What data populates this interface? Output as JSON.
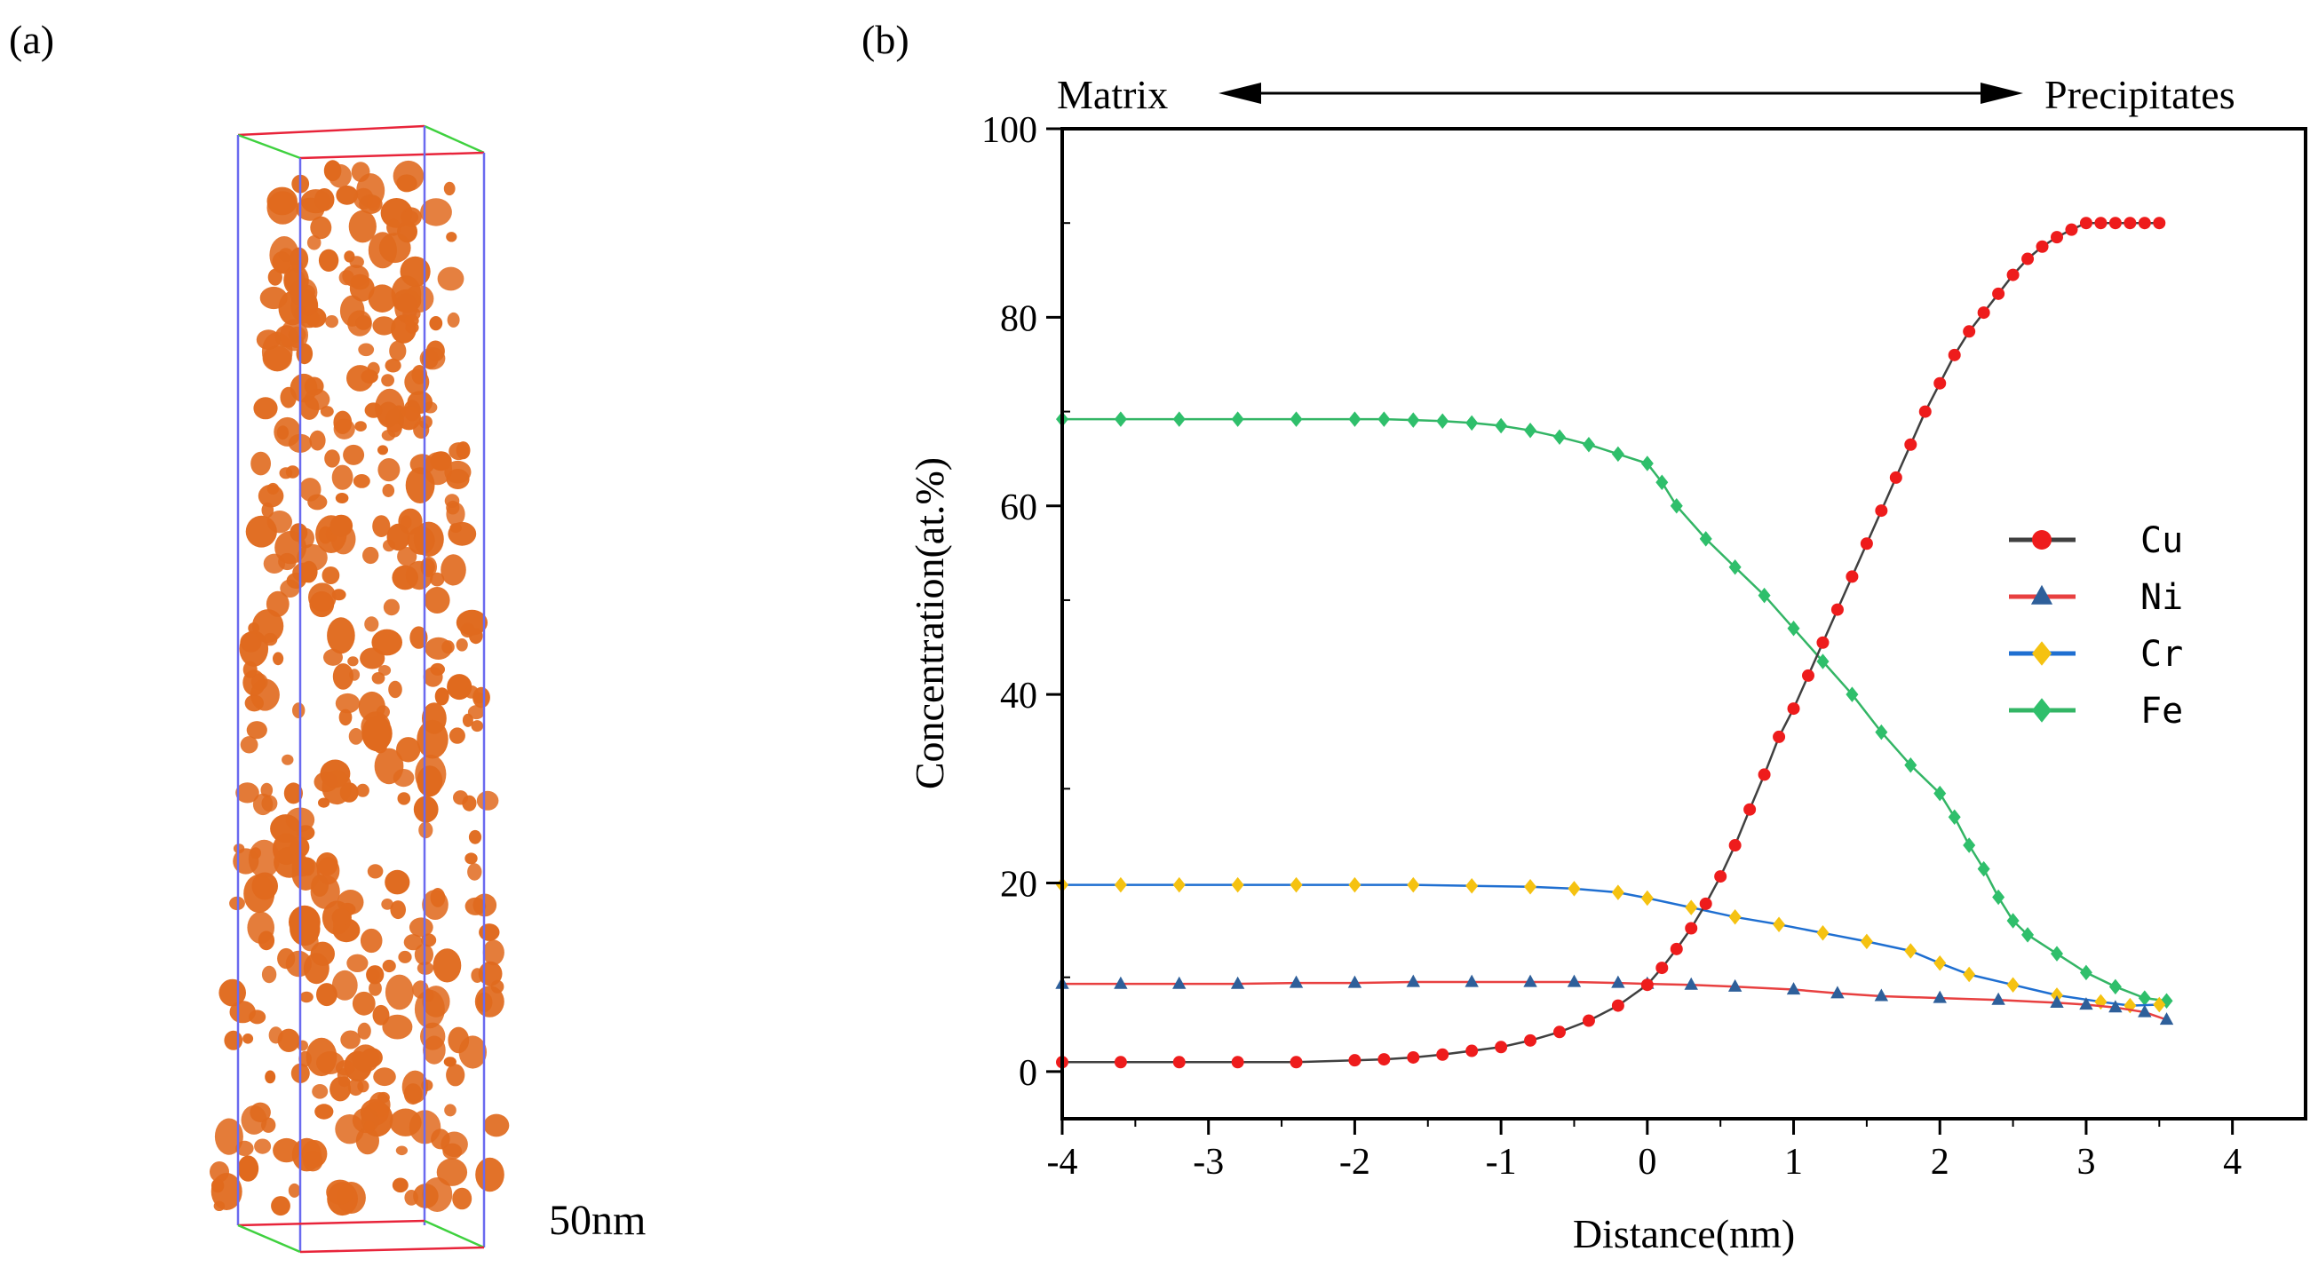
{
  "panels": {
    "a_label": "(a)",
    "b_label": "(b)"
  },
  "reconstruction": {
    "scale_label": "50nm",
    "box_colors": {
      "edge": "#6a6af0",
      "red": "#e8243a",
      "green": "#3fd13f"
    },
    "particle_color": "#e06a1e"
  },
  "annotations": {
    "left": "Matrix",
    "right": "Precipitates"
  },
  "chart_data": {
    "type": "line",
    "title": "",
    "xlabel": "Distance(nm)",
    "ylabel": "Concentration(at.%)",
    "xlim": [
      -4,
      4.5
    ],
    "ylim": [
      -5,
      100
    ],
    "xticks": [
      -4,
      -3,
      -2,
      -1,
      0,
      1,
      2,
      3,
      4
    ],
    "yticks": [
      0,
      20,
      40,
      60,
      80,
      100
    ],
    "legend_position": "right-middle",
    "series": [
      {
        "name": "Cu",
        "line_color": "#404040",
        "marker_color": "#ee1c1c",
        "marker": "circle",
        "x": [
          -4.0,
          -3.6,
          -3.2,
          -2.8,
          -2.4,
          -2.0,
          -1.8,
          -1.6,
          -1.4,
          -1.2,
          -1.0,
          -0.8,
          -0.6,
          -0.4,
          -0.2,
          0.0,
          0.1,
          0.2,
          0.3,
          0.4,
          0.5,
          0.6,
          0.7,
          0.8,
          0.9,
          1.0,
          1.1,
          1.2,
          1.3,
          1.4,
          1.5,
          1.6,
          1.7,
          1.8,
          1.9,
          2.0,
          2.1,
          2.2,
          2.3,
          2.4,
          2.5,
          2.6,
          2.7,
          2.8,
          2.9,
          3.0,
          3.1,
          3.2,
          3.3,
          3.4,
          3.5
        ],
        "y": [
          1.0,
          1.0,
          1.0,
          1.0,
          1.0,
          1.2,
          1.3,
          1.5,
          1.8,
          2.2,
          2.6,
          3.3,
          4.2,
          5.4,
          7.0,
          9.2,
          11.0,
          13.0,
          15.2,
          17.8,
          20.7,
          24.0,
          27.8,
          31.5,
          35.5,
          38.5,
          42.0,
          45.5,
          49.0,
          52.5,
          56.0,
          59.5,
          63.0,
          66.5,
          70.0,
          73.0,
          76.0,
          78.5,
          80.5,
          82.5,
          84.5,
          86.2,
          87.5,
          88.5,
          89.3,
          90.0,
          90.0,
          90.0,
          90.0,
          90.0,
          90.0
        ]
      },
      {
        "name": "Ni",
        "line_color": "#e84040",
        "marker_color": "#2e5f9a",
        "marker": "triangle",
        "x": [
          -4.0,
          -3.6,
          -3.2,
          -2.8,
          -2.4,
          -2.0,
          -1.6,
          -1.2,
          -0.8,
          -0.5,
          -0.2,
          0.0,
          0.3,
          0.6,
          1.0,
          1.3,
          1.6,
          2.0,
          2.4,
          2.8,
          3.0,
          3.2,
          3.4,
          3.55
        ],
        "y": [
          9.3,
          9.3,
          9.3,
          9.3,
          9.4,
          9.4,
          9.5,
          9.5,
          9.5,
          9.5,
          9.4,
          9.3,
          9.2,
          9.0,
          8.7,
          8.3,
          8.0,
          7.8,
          7.6,
          7.3,
          7.1,
          6.8,
          6.3,
          5.5
        ]
      },
      {
        "name": "Cr",
        "line_color": "#1f6fd1",
        "marker_color": "#f5c211",
        "marker": "diamond",
        "x": [
          -4.0,
          -3.6,
          -3.2,
          -2.8,
          -2.4,
          -2.0,
          -1.6,
          -1.2,
          -0.8,
          -0.5,
          -0.2,
          0.0,
          0.3,
          0.6,
          0.9,
          1.2,
          1.5,
          1.8,
          2.0,
          2.2,
          2.5,
          2.8,
          3.1,
          3.3,
          3.5
        ],
        "y": [
          19.8,
          19.8,
          19.8,
          19.8,
          19.8,
          19.8,
          19.8,
          19.7,
          19.6,
          19.4,
          19.0,
          18.4,
          17.4,
          16.4,
          15.6,
          14.7,
          13.8,
          12.8,
          11.5,
          10.3,
          9.2,
          8.1,
          7.4,
          7.0,
          7.1
        ]
      },
      {
        "name": "Fe",
        "line_color": "#33b565",
        "marker_color": "#2fbf6b",
        "marker": "diamond",
        "x": [
          -4.0,
          -3.6,
          -3.2,
          -2.8,
          -2.4,
          -2.0,
          -1.8,
          -1.6,
          -1.4,
          -1.2,
          -1.0,
          -0.8,
          -0.6,
          -0.4,
          -0.2,
          0.0,
          0.1,
          0.2,
          0.4,
          0.6,
          0.8,
          1.0,
          1.2,
          1.4,
          1.6,
          1.8,
          2.0,
          2.1,
          2.2,
          2.3,
          2.4,
          2.5,
          2.6,
          2.8,
          3.0,
          3.2,
          3.4,
          3.55
        ],
        "y": [
          69.2,
          69.2,
          69.2,
          69.2,
          69.2,
          69.2,
          69.2,
          69.1,
          69.0,
          68.8,
          68.5,
          68.0,
          67.3,
          66.5,
          65.5,
          64.5,
          62.5,
          60.0,
          56.5,
          53.5,
          50.5,
          47.0,
          43.5,
          40.0,
          36.0,
          32.5,
          29.5,
          27.0,
          24.0,
          21.5,
          18.5,
          16.0,
          14.5,
          12.5,
          10.5,
          9.0,
          7.8,
          7.5
        ]
      }
    ]
  }
}
